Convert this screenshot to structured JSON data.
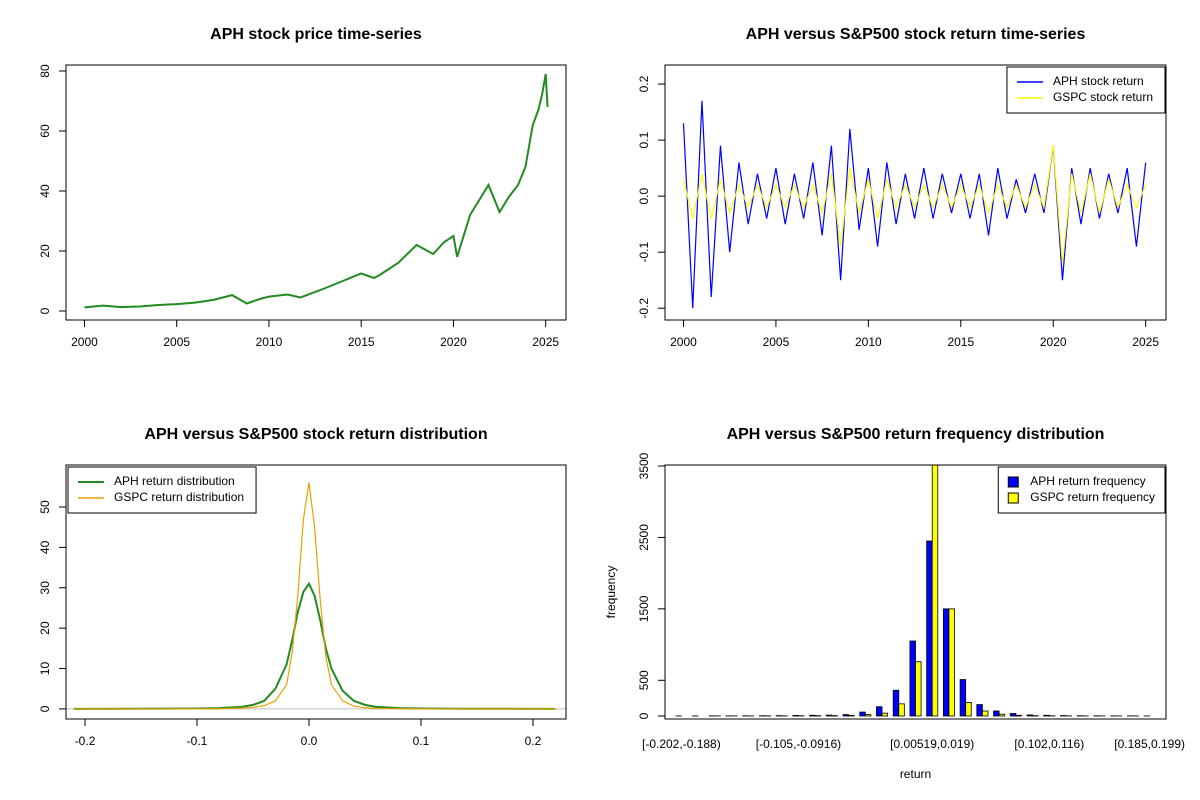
{
  "chart_data": [
    {
      "type": "line",
      "title": "APH stock price time-series",
      "color": "#228b22",
      "x": [
        2000,
        2001,
        2002,
        2003,
        2004,
        2005,
        2006,
        2007,
        2008,
        2008.8,
        2009.5,
        2010,
        2011,
        2011.7,
        2012,
        2013,
        2014,
        2015,
        2015.7,
        2016,
        2017,
        2018,
        2018.9,
        2019.5,
        2020,
        2020.2,
        2020.9,
        2021.9,
        2022.5,
        2023,
        2023.5,
        2023.9,
        2024.3,
        2024.6,
        2024.8,
        2025,
        2025.1
      ],
      "values": [
        1.2,
        1.8,
        1.3,
        1.5,
        2.0,
        2.3,
        2.8,
        3.7,
        5.3,
        2.5,
        4,
        4.8,
        5.5,
        4.5,
        5.2,
        7.5,
        10,
        12.5,
        11,
        12,
        16,
        22,
        19,
        23,
        25,
        18,
        32,
        42,
        33,
        38,
        42,
        48,
        62,
        67,
        72,
        79,
        68
      ],
      "xlim": [
        1999,
        2026.1
      ],
      "xticks": [
        2000,
        2005,
        2010,
        2015,
        2020,
        2025
      ],
      "ylim": [
        -3,
        82
      ],
      "yticks": [
        0,
        20,
        40,
        60,
        80
      ]
    },
    {
      "type": "line",
      "title": "APH versus S&P500 stock return time-series",
      "legend": "top-right",
      "x": [
        2000,
        2000.5,
        2001,
        2001.5,
        2002,
        2002.5,
        2003,
        2003.5,
        2004,
        2004.5,
        2005,
        2005.5,
        2006,
        2006.5,
        2007,
        2007.5,
        2008,
        2008.5,
        2009,
        2009.5,
        2010,
        2010.5,
        2011,
        2011.5,
        2012,
        2012.5,
        2013,
        2013.5,
        2014,
        2014.5,
        2015,
        2015.5,
        2016,
        2016.5,
        2017,
        2017.5,
        2018,
        2018.5,
        2019,
        2019.5,
        2020,
        2020.5,
        2021,
        2021.5,
        2022,
        2022.5,
        2023,
        2023.5,
        2024,
        2024.5,
        2025
      ],
      "series": [
        {
          "name": "APH stock return",
          "color": "#0000ff",
          "values": [
            0.13,
            -0.2,
            0.17,
            -0.18,
            0.09,
            -0.1,
            0.06,
            -0.05,
            0.04,
            -0.04,
            0.05,
            -0.05,
            0.04,
            -0.04,
            0.06,
            -0.07,
            0.09,
            -0.15,
            0.12,
            -0.06,
            0.05,
            -0.09,
            0.06,
            -0.05,
            0.04,
            -0.04,
            0.05,
            -0.04,
            0.04,
            -0.03,
            0.04,
            -0.04,
            0.04,
            -0.07,
            0.05,
            -0.04,
            0.03,
            -0.03,
            0.04,
            -0.03,
            0.09,
            -0.15,
            0.05,
            -0.05,
            0.05,
            -0.04,
            0.04,
            -0.03,
            0.05,
            -0.09,
            0.06
          ]
        },
        {
          "name": "GSPC stock return",
          "color": "#ffff00",
          "values": [
            0.03,
            -0.04,
            0.04,
            -0.04,
            0.03,
            -0.03,
            0.02,
            -0.02,
            0.02,
            -0.02,
            0.02,
            -0.02,
            0.02,
            -0.02,
            0.02,
            -0.03,
            0.04,
            -0.09,
            0.05,
            -0.03,
            0.03,
            -0.04,
            0.03,
            -0.02,
            0.02,
            -0.02,
            0.02,
            -0.02,
            0.02,
            -0.02,
            0.02,
            -0.02,
            0.02,
            -0.03,
            0.02,
            -0.02,
            0.02,
            -0.02,
            0.02,
            -0.02,
            0.09,
            -0.12,
            0.04,
            -0.03,
            0.04,
            -0.03,
            0.03,
            -0.02,
            0.02,
            -0.02,
            0.02
          ]
        }
      ],
      "xlim": [
        1999,
        2026.1
      ],
      "xticks": [
        2000,
        2005,
        2010,
        2015,
        2020,
        2025
      ],
      "ylim": [
        -0.221,
        0.234
      ],
      "yticks": [
        -0.2,
        -0.1,
        {
          "value": 0,
          "label": "0.0"
        },
        0.1,
        0.2
      ]
    },
    {
      "type": "line",
      "title": "APH versus S&P500 stock return distribution",
      "legend": "top-left",
      "x": [
        -0.21,
        -0.1,
        -0.08,
        -0.06,
        -0.05,
        -0.04,
        -0.03,
        -0.02,
        -0.015,
        -0.01,
        -0.005,
        0,
        0.005,
        0.01,
        0.015,
        0.02,
        0.03,
        0.04,
        0.05,
        0.06,
        0.08,
        0.1,
        0.14,
        0.22
      ],
      "series": [
        {
          "name": "APH return distribution",
          "color": "#228b22",
          "values": [
            0,
            0.1,
            0.2,
            0.5,
            1,
            2,
            5,
            11,
            17,
            24,
            29,
            31,
            28,
            22,
            15,
            10,
            4.5,
            2,
            1,
            0.5,
            0.2,
            0.1,
            0.05,
            0
          ]
        },
        {
          "name": "GSPC return distribution",
          "color": "#e8a000",
          "values": [
            0,
            0,
            0.05,
            0.2,
            0.4,
            0.8,
            2,
            6,
            14,
            28,
            47,
            56,
            45,
            27,
            13,
            6,
            2,
            0.7,
            0.3,
            0.1,
            0.03,
            0,
            0,
            0
          ]
        }
      ],
      "xlim": [
        -0.217,
        0.2295
      ],
      "xticks": [
        -0.2,
        -0.1,
        {
          "value": 0,
          "label": "0.0"
        },
        0.1,
        0.2
      ],
      "ylim": [
        -2.5,
        60.4
      ],
      "yticks": [
        0,
        10,
        20,
        30,
        40,
        50
      ]
    },
    {
      "type": "bar",
      "title": "APH versus S&P500 return frequency distribution",
      "legend": "top-right",
      "x_label": "return",
      "y_label": "frequency",
      "categories": [
        "[-0.202,-0.188)",
        null,
        null,
        null,
        null,
        null,
        null,
        "[-0.105,-0.0916)",
        null,
        null,
        null,
        null,
        null,
        null,
        null,
        "[0.00519,0.019)",
        null,
        null,
        null,
        null,
        null,
        null,
        "[0.102,0.116)",
        null,
        null,
        null,
        null,
        null,
        "[0.185,0.199)"
      ],
      "series": [
        {
          "name": "APH return frequency",
          "color": "#0000ff",
          "values": [
            1,
            1,
            2,
            2,
            3,
            4,
            5,
            8,
            10,
            12,
            20,
            55,
            130,
            360,
            1050,
            2450,
            1500,
            510,
            160,
            70,
            35,
            15,
            10,
            6,
            4,
            3,
            2,
            2,
            1
          ]
        },
        {
          "name": "GSPC return frequency",
          "color": "#ffff00",
          "values": [
            0,
            0,
            1,
            1,
            1,
            2,
            2,
            3,
            5,
            5,
            8,
            20,
            40,
            170,
            760,
            3600,
            1500,
            190,
            70,
            25,
            10,
            5,
            3,
            2,
            1,
            1,
            1,
            1,
            0
          ]
        }
      ],
      "ylim": [
        -42,
        3514
      ],
      "yticks": [
        0,
        500,
        1500,
        2500,
        3500
      ]
    }
  ]
}
